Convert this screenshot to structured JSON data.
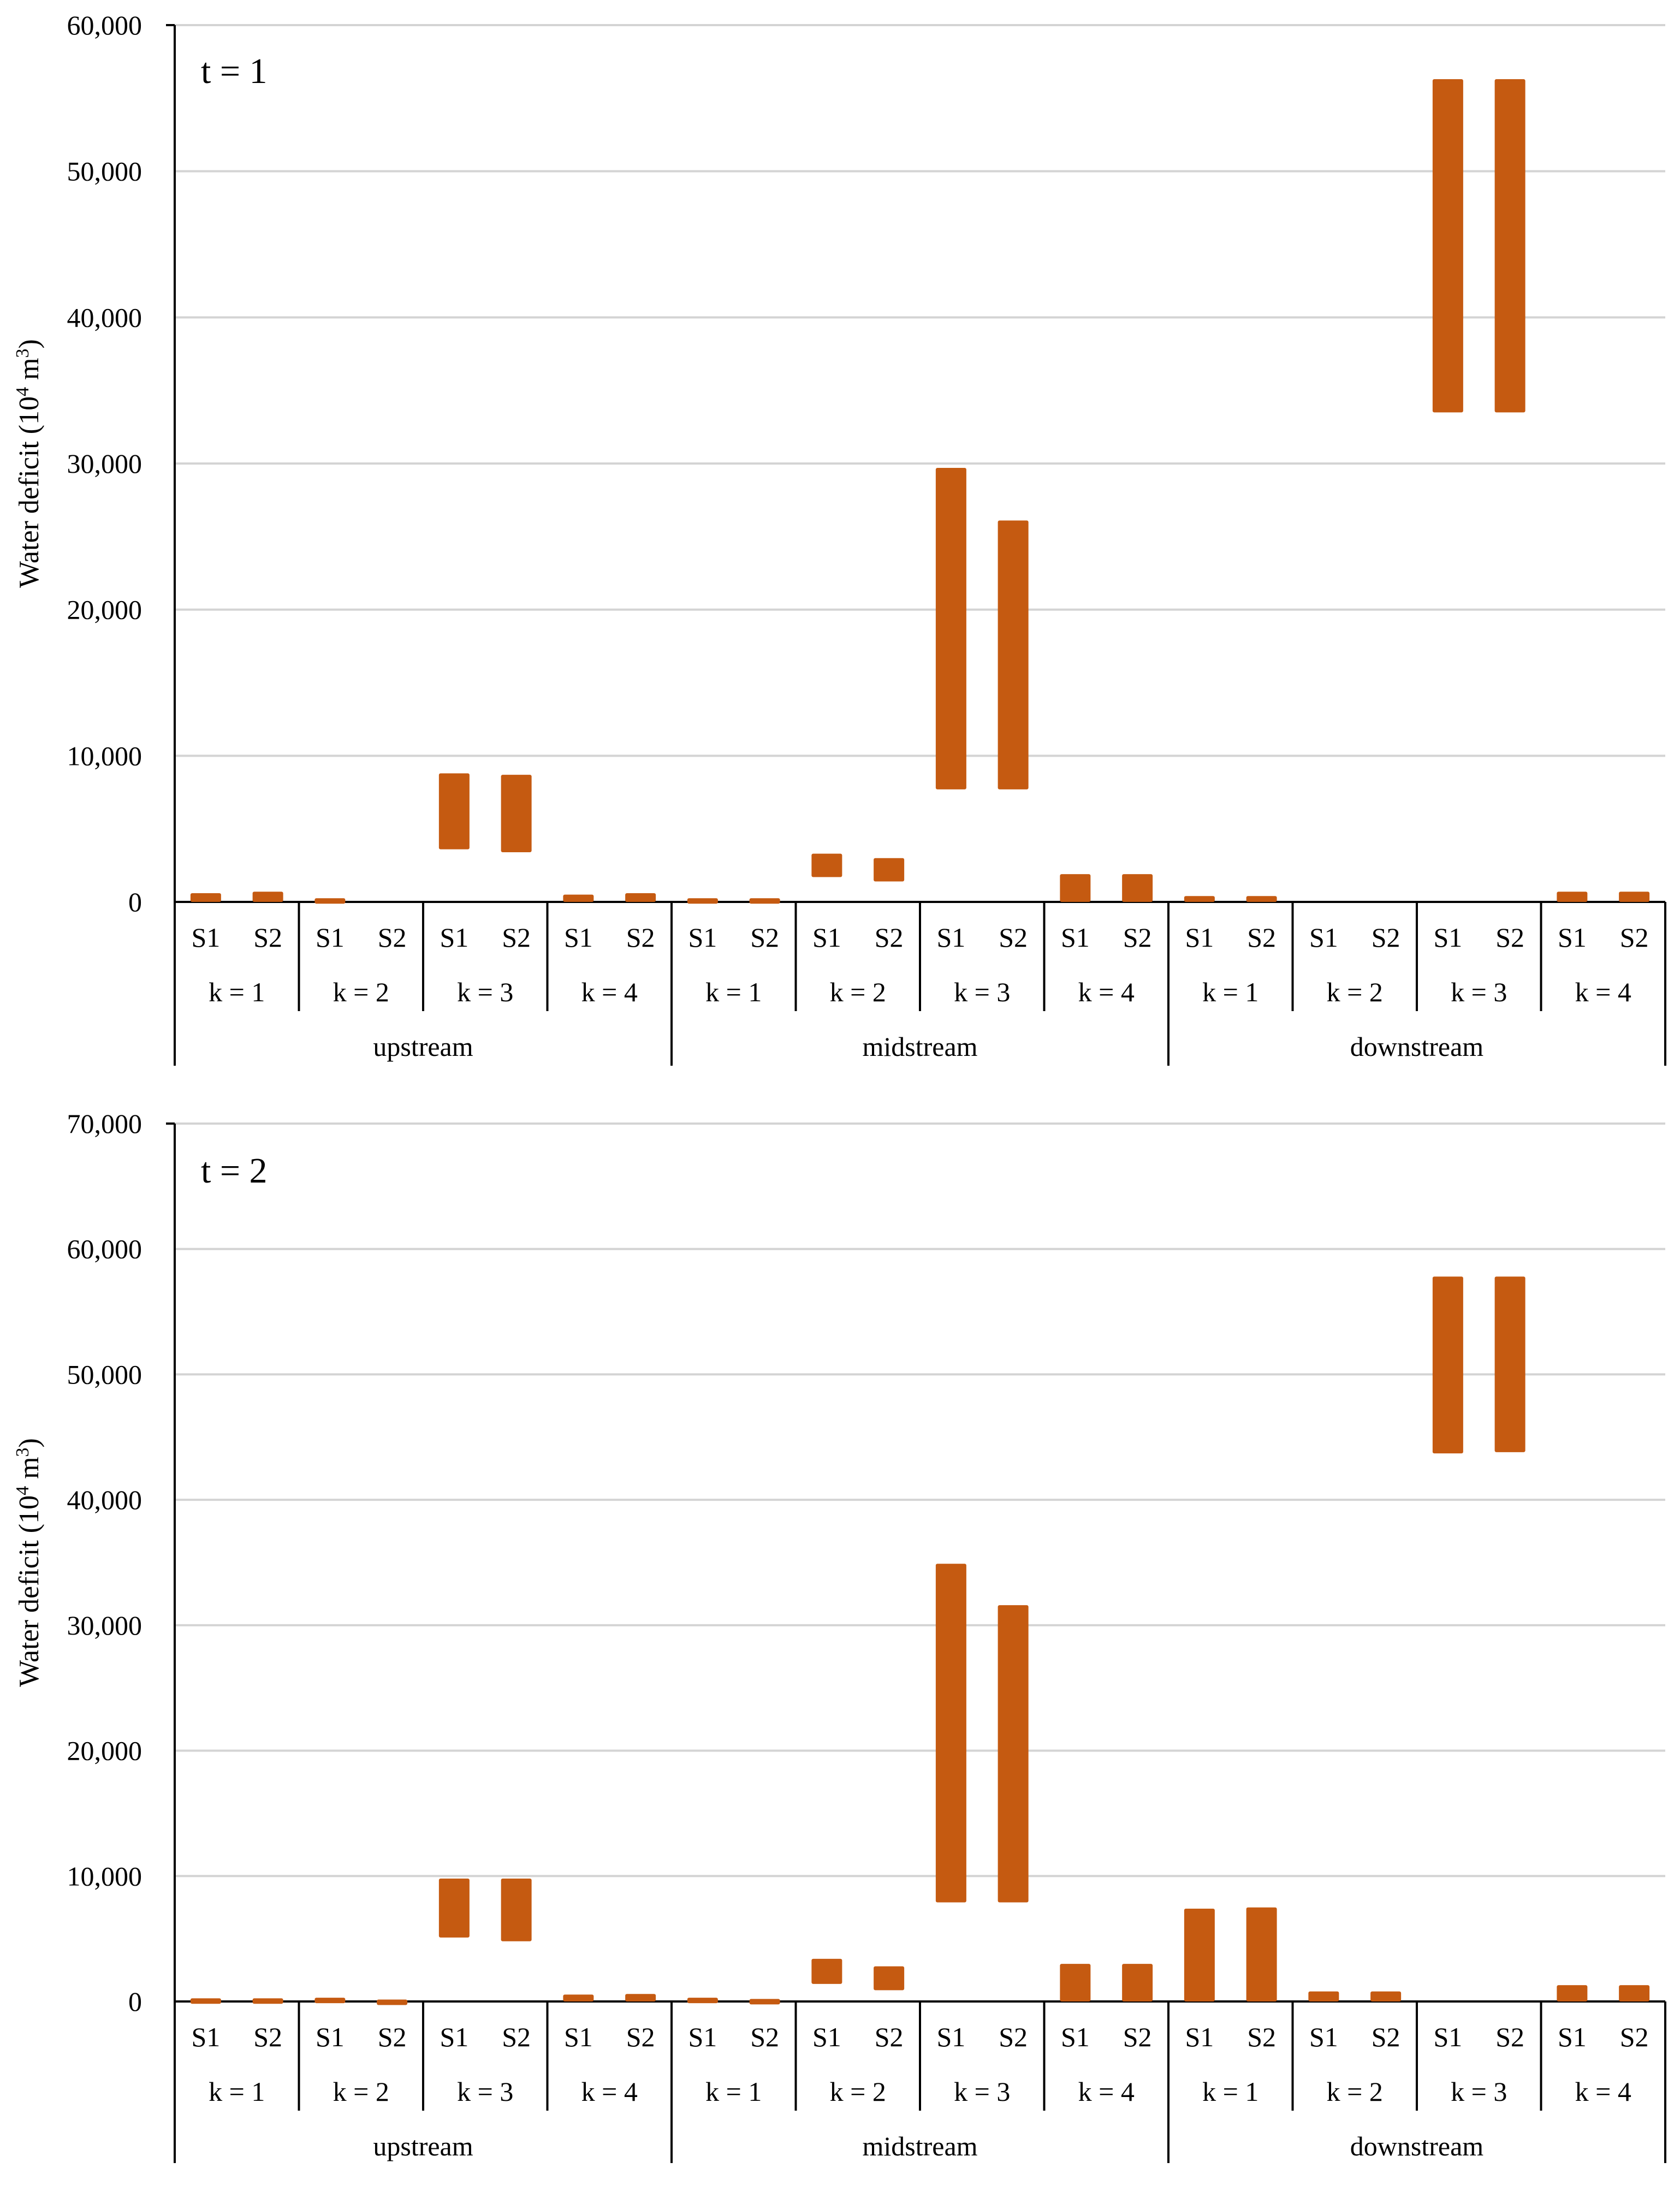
{
  "colors": {
    "bar": "#c55a11",
    "grid": "#d4d4d4",
    "axis": "#000000",
    "text": "#000000"
  },
  "y_axis_title_prefix": "Water deficit (10",
  "y_axis_title_exp4": "4",
  "y_axis_title_mid": " m",
  "y_axis_title_exp3": "3",
  "y_axis_title_suffix": ")",
  "chart_data": [
    {
      "type": "floating-bar",
      "title": "t = 1",
      "xlabel": "",
      "ylabel": "Water deficit (10^4 m^3)",
      "ylim": [
        0,
        60000
      ],
      "yticks": [
        0,
        10000,
        20000,
        30000,
        40000,
        50000,
        60000
      ],
      "ytick_labels": [
        "0",
        "10,000",
        "20,000",
        "30,000",
        "40,000",
        "50,000",
        "60,000"
      ],
      "grid": true,
      "groups": [
        {
          "region": "upstream",
          "k": [
            {
              "label": "k = 1",
              "bars": [
                {
                  "label": "S1",
                  "low": 0,
                  "high": 600
                },
                {
                  "label": "S2",
                  "low": 0,
                  "high": 700
                }
              ]
            },
            {
              "label": "k = 2",
              "bars": [
                {
                  "label": "S1",
                  "low": 0,
                  "high": 250
                },
                {
                  "label": "S2",
                  "low": 0,
                  "high": 0
                }
              ]
            },
            {
              "label": "k = 3",
              "bars": [
                {
                  "label": "S1",
                  "low": 3600,
                  "high": 8800
                },
                {
                  "label": "S2",
                  "low": 3400,
                  "high": 8700
                }
              ]
            },
            {
              "label": "k = 4",
              "bars": [
                {
                  "label": "S1",
                  "low": 0,
                  "high": 500
                },
                {
                  "label": "S2",
                  "low": 0,
                  "high": 600
                }
              ]
            }
          ]
        },
        {
          "region": "midstream",
          "k": [
            {
              "label": "k = 1",
              "bars": [
                {
                  "label": "S1",
                  "low": 0,
                  "high": 250
                },
                {
                  "label": "S2",
                  "low": 0,
                  "high": 250
                }
              ]
            },
            {
              "label": "k = 2",
              "bars": [
                {
                  "label": "S1",
                  "low": 1700,
                  "high": 3300
                },
                {
                  "label": "S2",
                  "low": 1400,
                  "high": 3000
                }
              ]
            },
            {
              "label": "k = 3",
              "bars": [
                {
                  "label": "S1",
                  "low": 7700,
                  "high": 29700
                },
                {
                  "label": "S2",
                  "low": 7700,
                  "high": 26100
                }
              ]
            },
            {
              "label": "k = 4",
              "bars": [
                {
                  "label": "S1",
                  "low": 0,
                  "high": 1900
                },
                {
                  "label": "S2",
                  "low": 0,
                  "high": 1900
                }
              ]
            }
          ]
        },
        {
          "region": "downstream",
          "k": [
            {
              "label": "k = 1",
              "bars": [
                {
                  "label": "S1",
                  "low": 0,
                  "high": 400
                },
                {
                  "label": "S2",
                  "low": 0,
                  "high": 400
                }
              ]
            },
            {
              "label": "k = 2",
              "bars": [
                {
                  "label": "S1",
                  "low": 0,
                  "high": 0
                },
                {
                  "label": "S2",
                  "low": 0,
                  "high": 0
                }
              ]
            },
            {
              "label": "k = 3",
              "bars": [
                {
                  "label": "S1",
                  "low": 33500,
                  "high": 56300
                },
                {
                  "label": "S2",
                  "low": 33500,
                  "high": 56300
                }
              ]
            },
            {
              "label": "k = 4",
              "bars": [
                {
                  "label": "S1",
                  "low": 0,
                  "high": 700
                },
                {
                  "label": "S2",
                  "low": 0,
                  "high": 700
                }
              ]
            }
          ]
        }
      ]
    },
    {
      "type": "floating-bar",
      "title": "t = 2",
      "xlabel": "",
      "ylabel": "Water deficit (10^4 m^3)",
      "ylim": [
        0,
        70000
      ],
      "yticks": [
        0,
        10000,
        20000,
        30000,
        40000,
        50000,
        60000,
        70000
      ],
      "ytick_labels": [
        "0",
        "10,000",
        "20,000",
        "30,000",
        "40,000",
        "50,000",
        "60,000",
        "70,000"
      ],
      "grid": true,
      "groups": [
        {
          "region": "upstream",
          "k": [
            {
              "label": "k = 1",
              "bars": [
                {
                  "label": "S1",
                  "low": 0,
                  "high": 250
                },
                {
                  "label": "S2",
                  "low": 0,
                  "high": 250
                }
              ]
            },
            {
              "label": "k = 2",
              "bars": [
                {
                  "label": "S1",
                  "low": 0,
                  "high": 300
                },
                {
                  "label": "S2",
                  "low": 0,
                  "high": 150
                }
              ]
            },
            {
              "label": "k = 3",
              "bars": [
                {
                  "label": "S1",
                  "low": 5100,
                  "high": 9800
                },
                {
                  "label": "S2",
                  "low": 4800,
                  "high": 9800
                }
              ]
            },
            {
              "label": "k = 4",
              "bars": [
                {
                  "label": "S1",
                  "low": 0,
                  "high": 550
                },
                {
                  "label": "S2",
                  "low": 0,
                  "high": 600
                }
              ]
            }
          ]
        },
        {
          "region": "midstream",
          "k": [
            {
              "label": "k = 1",
              "bars": [
                {
                  "label": "S1",
                  "low": 0,
                  "high": 300
                },
                {
                  "label": "S2",
                  "low": 0,
                  "high": 200
                }
              ]
            },
            {
              "label": "k = 2",
              "bars": [
                {
                  "label": "S1",
                  "low": 1400,
                  "high": 3400
                },
                {
                  "label": "S2",
                  "low": 900,
                  "high": 2800
                }
              ]
            },
            {
              "label": "k = 3",
              "bars": [
                {
                  "label": "S1",
                  "low": 7900,
                  "high": 34900
                },
                {
                  "label": "S2",
                  "low": 7900,
                  "high": 31600
                }
              ]
            },
            {
              "label": "k = 4",
              "bars": [
                {
                  "label": "S1",
                  "low": 0,
                  "high": 3000
                },
                {
                  "label": "S2",
                  "low": 0,
                  "high": 3000
                }
              ]
            }
          ]
        },
        {
          "region": "downstream",
          "k": [
            {
              "label": "k = 1",
              "bars": [
                {
                  "label": "S1",
                  "low": 0,
                  "high": 7400
                },
                {
                  "label": "S2",
                  "low": 0,
                  "high": 7500
                }
              ]
            },
            {
              "label": "k = 2",
              "bars": [
                {
                  "label": "S1",
                  "low": 0,
                  "high": 800
                },
                {
                  "label": "S2",
                  "low": 0,
                  "high": 800
                }
              ]
            },
            {
              "label": "k = 3",
              "bars": [
                {
                  "label": "S1",
                  "low": 43700,
                  "high": 57800
                },
                {
                  "label": "S2",
                  "low": 43800,
                  "high": 57800
                }
              ]
            },
            {
              "label": "k = 4",
              "bars": [
                {
                  "label": "S1",
                  "low": 0,
                  "high": 1300
                },
                {
                  "label": "S2",
                  "low": 0,
                  "high": 1300
                }
              ]
            }
          ]
        }
      ]
    }
  ]
}
